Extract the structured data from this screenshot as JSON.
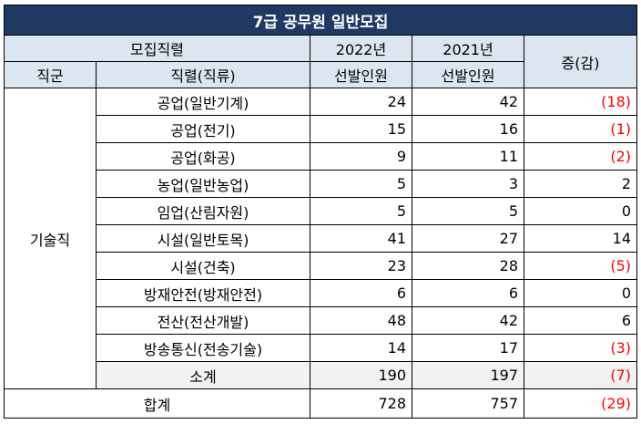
{
  "title": "7급 공무원 일반모집",
  "header": {
    "recruit_field": "모집직렬",
    "year_2022": "2022년",
    "year_2021": "2021년",
    "change": "증(감)",
    "job_group": "직군",
    "job_series": "직렬(직류)",
    "selected_2022": "선발인원",
    "selected_2021": "선발인원"
  },
  "group_name": "기술직",
  "rows": [
    {
      "name": "공업(일반기계)",
      "v2022": "24",
      "v2021": "42",
      "change": "(18)",
      "negative": true
    },
    {
      "name": "공업(전기)",
      "v2022": "15",
      "v2021": "16",
      "change": "(1)",
      "negative": true
    },
    {
      "name": "공업(화공)",
      "v2022": "9",
      "v2021": "11",
      "change": "(2)",
      "negative": true
    },
    {
      "name": "농업(일반농업)",
      "v2022": "5",
      "v2021": "3",
      "change": "2",
      "negative": false
    },
    {
      "name": "임업(산림자원)",
      "v2022": "5",
      "v2021": "5",
      "change": "0",
      "negative": false
    },
    {
      "name": "시설(일반토목)",
      "v2022": "41",
      "v2021": "27",
      "change": "14",
      "negative": false
    },
    {
      "name": "시설(건축)",
      "v2022": "23",
      "v2021": "28",
      "change": "(5)",
      "negative": true
    },
    {
      "name": "방재안전(방재안전)",
      "v2022": "6",
      "v2021": "6",
      "change": "0",
      "negative": false
    },
    {
      "name": "전산(전산개발)",
      "v2022": "48",
      "v2021": "42",
      "change": "6",
      "negative": false
    },
    {
      "name": "방송통신(전송기술)",
      "v2022": "14",
      "v2021": "17",
      "change": "(3)",
      "negative": true
    }
  ],
  "subtotal": {
    "label": "소계",
    "v2022": "190",
    "v2021": "197",
    "change": "(7)"
  },
  "total": {
    "label": "합계",
    "v2022": "728",
    "v2021": "757",
    "change": "(29)"
  }
}
